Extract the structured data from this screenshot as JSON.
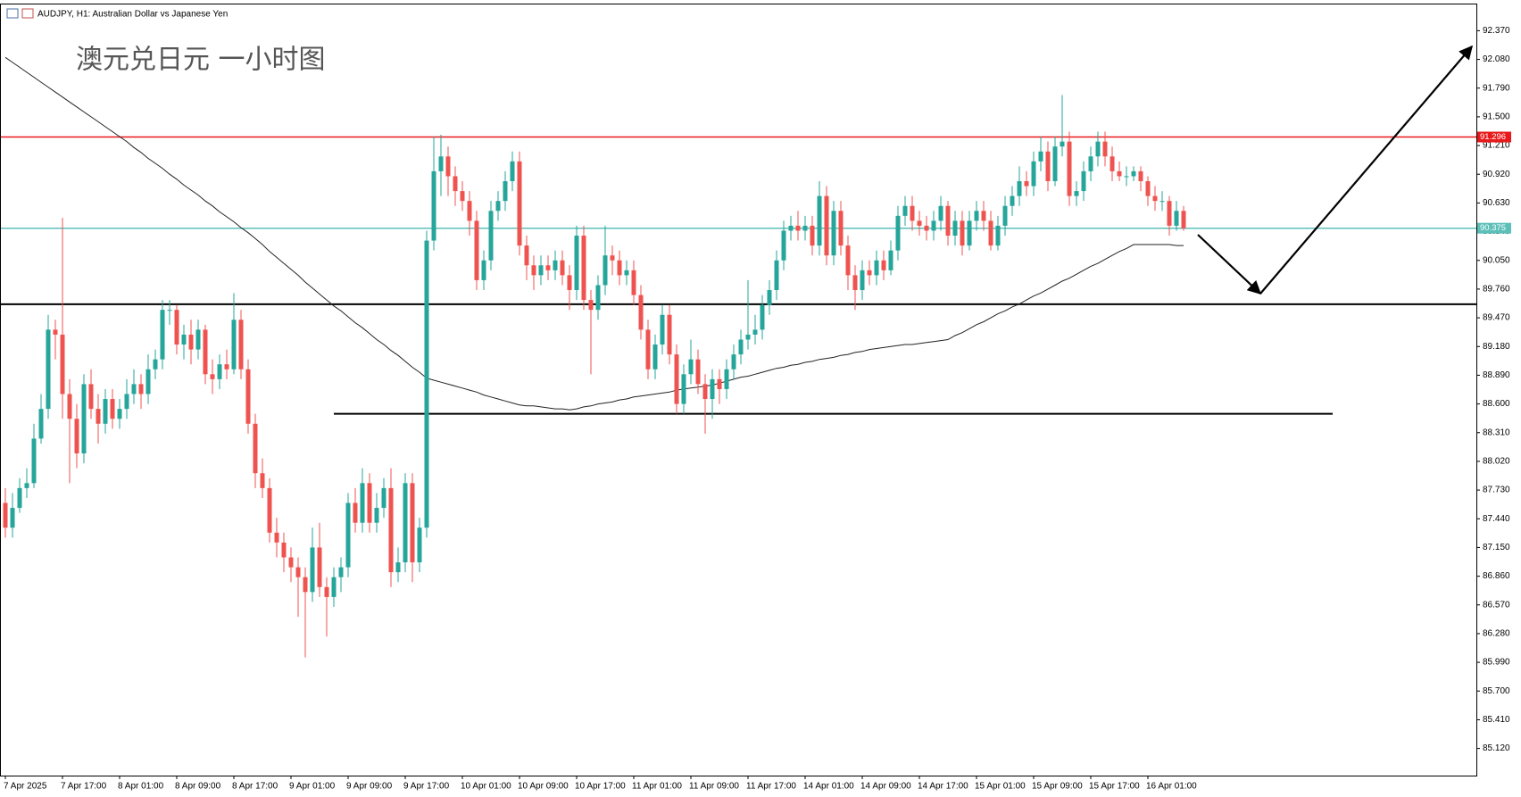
{
  "chart_data": {
    "type": "candlestick",
    "header": "AUDJPY, H1:  Australian Dollar vs Japanese Yen",
    "title": "澳元兑日元 一小时图",
    "up_color": "#26a69a",
    "down_color": "#ef5350",
    "ylim": [
      84.846,
      92.635
    ],
    "yticks": [
      {
        "value": 92.37,
        "label": "92.370"
      },
      {
        "value": 92.08,
        "label": "92.080"
      },
      {
        "value": 91.79,
        "label": "91.790"
      },
      {
        "value": 91.5,
        "label": "91.500"
      },
      {
        "value": 91.21,
        "label": "91.210"
      },
      {
        "value": 90.92,
        "label": "90.920"
      },
      {
        "value": 90.63,
        "label": "90.630"
      },
      {
        "value": 90.34,
        "label": "90.340"
      },
      {
        "value": 90.05,
        "label": "90.050"
      },
      {
        "value": 89.76,
        "label": "89.760"
      },
      {
        "value": 89.47,
        "label": "89.470"
      },
      {
        "value": 89.18,
        "label": "89.180"
      },
      {
        "value": 88.89,
        "label": "88.890"
      },
      {
        "value": 88.6,
        "label": "88.600"
      },
      {
        "value": 88.31,
        "label": "88.310"
      },
      {
        "value": 88.02,
        "label": "88.020"
      },
      {
        "value": 87.73,
        "label": "87.730"
      },
      {
        "value": 87.44,
        "label": "87.440"
      },
      {
        "value": 87.15,
        "label": "87.150"
      },
      {
        "value": 86.86,
        "label": "86.860"
      },
      {
        "value": 86.57,
        "label": "86.570"
      },
      {
        "value": 86.28,
        "label": "86.280"
      },
      {
        "value": 85.99,
        "label": "85.990"
      },
      {
        "value": 85.7,
        "label": "85.700"
      },
      {
        "value": 85.41,
        "label": "85.410"
      },
      {
        "value": 85.12,
        "label": "85.120"
      }
    ],
    "categories": [
      "7 Apr 2025",
      null,
      null,
      null,
      null,
      null,
      null,
      null,
      "7 Apr 17:00",
      null,
      null,
      null,
      null,
      null,
      null,
      null,
      "8 Apr 01:00",
      null,
      null,
      null,
      null,
      null,
      null,
      null,
      "8 Apr 09:00",
      null,
      null,
      null,
      null,
      null,
      null,
      null,
      "8 Apr 17:00",
      null,
      null,
      null,
      null,
      null,
      null,
      null,
      "9 Apr 01:00",
      null,
      null,
      null,
      null,
      null,
      null,
      null,
      "9 Apr 09:00",
      null,
      null,
      null,
      null,
      null,
      null,
      null,
      "9 Apr 17:00",
      null,
      null,
      null,
      null,
      null,
      null,
      null,
      "10 Apr 01:00",
      null,
      null,
      null,
      null,
      null,
      null,
      null,
      "10 Apr 09:00",
      null,
      null,
      null,
      null,
      null,
      null,
      null,
      "10 Apr 17:00",
      null,
      null,
      null,
      null,
      null,
      null,
      null,
      "11 Apr 01:00",
      null,
      null,
      null,
      null,
      null,
      null,
      null,
      "11 Apr 09:00",
      null,
      null,
      null,
      null,
      null,
      null,
      null,
      "11 Apr 17:00",
      null,
      null,
      null,
      null,
      null,
      null,
      null,
      "14 Apr 01:00",
      null,
      null,
      null,
      null,
      null,
      null,
      null,
      "14 Apr 09:00",
      null,
      null,
      null,
      null,
      null,
      null,
      null,
      "14 Apr 17:00",
      null,
      null,
      null,
      null,
      null,
      null,
      null,
      "15 Apr 01:00",
      null,
      null,
      null,
      null,
      null,
      null,
      null,
      "15 Apr 09:00",
      null,
      null,
      null,
      null,
      null,
      null,
      null,
      "15 Apr 17:00",
      null,
      null,
      null,
      null,
      null,
      null,
      null,
      "16 Apr 01:00",
      null,
      null,
      null,
      null,
      null
    ],
    "ohlc": [
      [
        87.6,
        87.75,
        87.25,
        87.35
      ],
      [
        87.35,
        87.7,
        87.25,
        87.55
      ],
      [
        87.55,
        87.85,
        87.5,
        87.75
      ],
      [
        87.75,
        87.95,
        87.65,
        87.8
      ],
      [
        87.8,
        88.4,
        87.75,
        88.25
      ],
      [
        88.25,
        88.7,
        88.2,
        88.55
      ],
      [
        88.55,
        89.5,
        88.45,
        89.35
      ],
      [
        89.35,
        89.45,
        89.05,
        89.3
      ],
      [
        89.3,
        90.48,
        88.45,
        88.7
      ],
      [
        88.7,
        88.85,
        87.8,
        88.45
      ],
      [
        88.45,
        88.6,
        87.95,
        88.1
      ],
      [
        88.1,
        88.9,
        88.0,
        88.8
      ],
      [
        88.8,
        88.95,
        88.45,
        88.55
      ],
      [
        88.55,
        88.7,
        88.2,
        88.4
      ],
      [
        88.4,
        88.75,
        88.3,
        88.65
      ],
      [
        88.65,
        88.75,
        88.35,
        88.45
      ],
      [
        88.45,
        88.65,
        88.35,
        88.55
      ],
      [
        88.55,
        88.85,
        88.45,
        88.7
      ],
      [
        88.7,
        88.95,
        88.6,
        88.8
      ],
      [
        88.8,
        88.9,
        88.55,
        88.7
      ],
      [
        88.7,
        89.1,
        88.6,
        88.95
      ],
      [
        88.95,
        89.15,
        88.85,
        89.05
      ],
      [
        89.05,
        89.65,
        88.95,
        89.55
      ],
      [
        89.55,
        89.65,
        89.4,
        89.55
      ],
      [
        89.55,
        89.6,
        89.1,
        89.2
      ],
      [
        89.2,
        89.4,
        89.05,
        89.3
      ],
      [
        89.3,
        89.45,
        89.0,
        89.15
      ],
      [
        89.15,
        89.45,
        89.05,
        89.35
      ],
      [
        89.35,
        89.4,
        88.8,
        88.9
      ],
      [
        88.9,
        89.05,
        88.7,
        88.85
      ],
      [
        88.85,
        89.1,
        88.75,
        89.0
      ],
      [
        89.0,
        89.15,
        88.85,
        88.95
      ],
      [
        88.95,
        89.72,
        88.9,
        89.45
      ],
      [
        89.45,
        89.55,
        88.85,
        88.95
      ],
      [
        88.95,
        89.05,
        88.3,
        88.4
      ],
      [
        88.4,
        88.5,
        87.75,
        87.9
      ],
      [
        87.9,
        88.05,
        87.65,
        87.75
      ],
      [
        87.75,
        87.85,
        87.2,
        87.3
      ],
      [
        87.3,
        87.45,
        87.05,
        87.2
      ],
      [
        87.2,
        87.3,
        86.9,
        87.05
      ],
      [
        87.05,
        87.15,
        86.8,
        86.95
      ],
      [
        86.95,
        87.05,
        86.45,
        86.85
      ],
      [
        86.85,
        86.95,
        86.04,
        86.7
      ],
      [
        86.7,
        87.35,
        86.6,
        87.15
      ],
      [
        87.15,
        87.4,
        86.65,
        86.75
      ],
      [
        86.75,
        86.85,
        86.25,
        86.65
      ],
      [
        86.65,
        86.95,
        86.55,
        86.85
      ],
      [
        86.85,
        87.05,
        86.7,
        86.95
      ],
      [
        86.95,
        87.7,
        86.85,
        87.6
      ],
      [
        87.6,
        87.75,
        87.3,
        87.4
      ],
      [
        87.4,
        87.95,
        87.3,
        87.8
      ],
      [
        87.8,
        87.9,
        87.3,
        87.4
      ],
      [
        87.4,
        87.7,
        87.3,
        87.55
      ],
      [
        87.55,
        87.85,
        87.45,
        87.75
      ],
      [
        87.75,
        87.95,
        86.75,
        86.9
      ],
      [
        86.9,
        87.15,
        86.8,
        87.0
      ],
      [
        87.0,
        87.9,
        86.9,
        87.8
      ],
      [
        87.8,
        87.9,
        86.8,
        87.0
      ],
      [
        87.0,
        87.45,
        86.9,
        87.35
      ],
      [
        87.35,
        90.35,
        87.25,
        90.25
      ],
      [
        90.25,
        91.3,
        90.15,
        90.95
      ],
      [
        90.95,
        91.32,
        90.7,
        91.1
      ],
      [
        91.1,
        91.2,
        90.7,
        90.9
      ],
      [
        90.9,
        91.0,
        90.6,
        90.75
      ],
      [
        90.75,
        90.85,
        90.55,
        90.65
      ],
      [
        90.65,
        90.75,
        90.3,
        90.45
      ],
      [
        90.45,
        90.55,
        89.75,
        89.85
      ],
      [
        89.85,
        90.15,
        89.75,
        90.05
      ],
      [
        90.05,
        90.65,
        89.95,
        90.55
      ],
      [
        90.55,
        90.75,
        90.45,
        90.65
      ],
      [
        90.65,
        90.95,
        90.55,
        90.85
      ],
      [
        90.85,
        91.15,
        90.75,
        91.05
      ],
      [
        91.05,
        91.15,
        90.1,
        90.2
      ],
      [
        90.2,
        90.3,
        89.85,
        90.0
      ],
      [
        90.0,
        90.1,
        89.75,
        89.9
      ],
      [
        89.9,
        90.1,
        89.8,
        90.0
      ],
      [
        90.0,
        90.1,
        89.85,
        89.95
      ],
      [
        89.95,
        90.15,
        89.85,
        90.05
      ],
      [
        90.05,
        90.15,
        89.8,
        89.9
      ],
      [
        89.9,
        90.0,
        89.55,
        89.75
      ],
      [
        89.75,
        90.4,
        89.65,
        90.3
      ],
      [
        90.3,
        90.4,
        89.55,
        89.65
      ],
      [
        89.65,
        89.75,
        88.9,
        89.55
      ],
      [
        89.55,
        89.9,
        89.45,
        89.8
      ],
      [
        89.8,
        90.4,
        89.7,
        90.1
      ],
      [
        90.1,
        90.2,
        89.9,
        90.05
      ],
      [
        90.05,
        90.15,
        89.8,
        89.9
      ],
      [
        89.9,
        90.05,
        89.8,
        89.95
      ],
      [
        89.95,
        90.05,
        89.6,
        89.7
      ],
      [
        89.7,
        89.8,
        89.25,
        89.35
      ],
      [
        89.35,
        89.45,
        88.85,
        88.95
      ],
      [
        88.95,
        89.3,
        88.85,
        89.2
      ],
      [
        89.2,
        89.6,
        89.1,
        89.5
      ],
      [
        89.5,
        89.6,
        89.0,
        89.1
      ],
      [
        89.1,
        89.2,
        88.5,
        88.6
      ],
      [
        88.6,
        89.0,
        88.5,
        88.9
      ],
      [
        88.9,
        89.25,
        88.8,
        89.05
      ],
      [
        89.05,
        89.15,
        88.7,
        88.8
      ],
      [
        88.8,
        88.9,
        88.3,
        88.65
      ],
      [
        88.65,
        88.95,
        88.45,
        88.85
      ],
      [
        88.85,
        88.95,
        88.6,
        88.75
      ],
      [
        88.75,
        89.05,
        88.65,
        88.95
      ],
      [
        88.95,
        89.2,
        88.85,
        89.1
      ],
      [
        89.1,
        89.35,
        89.0,
        89.25
      ],
      [
        89.25,
        89.85,
        89.15,
        89.3
      ],
      [
        89.3,
        89.5,
        89.2,
        89.35
      ],
      [
        89.35,
        89.7,
        89.25,
        89.6
      ],
      [
        89.6,
        89.85,
        89.5,
        89.75
      ],
      [
        89.75,
        90.15,
        89.65,
        90.05
      ],
      [
        90.05,
        90.45,
        89.95,
        90.35
      ],
      [
        90.35,
        90.5,
        90.25,
        90.4
      ],
      [
        90.4,
        90.55,
        90.25,
        90.35
      ],
      [
        90.35,
        90.5,
        90.25,
        90.4
      ],
      [
        90.4,
        90.5,
        90.1,
        90.2
      ],
      [
        90.2,
        90.85,
        90.1,
        90.7
      ],
      [
        90.7,
        90.8,
        90.0,
        90.1
      ],
      [
        90.1,
        90.65,
        90.0,
        90.55
      ],
      [
        90.55,
        90.65,
        90.1,
        90.2
      ],
      [
        90.2,
        90.3,
        89.75,
        89.9
      ],
      [
        89.9,
        90.0,
        89.55,
        89.75
      ],
      [
        89.75,
        90.05,
        89.65,
        89.95
      ],
      [
        89.95,
        90.05,
        89.8,
        89.9
      ],
      [
        89.9,
        90.15,
        89.8,
        90.05
      ],
      [
        90.05,
        90.15,
        89.85,
        89.95
      ],
      [
        89.95,
        90.25,
        89.9,
        90.15
      ],
      [
        90.15,
        90.6,
        90.05,
        90.5
      ],
      [
        90.5,
        90.7,
        90.4,
        90.6
      ],
      [
        90.6,
        90.7,
        90.35,
        90.45
      ],
      [
        90.45,
        90.55,
        90.3,
        90.4
      ],
      [
        90.4,
        90.5,
        90.25,
        90.35
      ],
      [
        90.35,
        90.55,
        90.25,
        90.45
      ],
      [
        90.45,
        90.7,
        90.35,
        90.6
      ],
      [
        90.6,
        90.65,
        90.2,
        90.3
      ],
      [
        90.3,
        90.55,
        90.2,
        90.45
      ],
      [
        90.45,
        90.55,
        90.1,
        90.2
      ],
      [
        90.2,
        90.55,
        90.15,
        90.45
      ],
      [
        90.45,
        90.65,
        90.35,
        90.55
      ],
      [
        90.55,
        90.65,
        90.35,
        90.45
      ],
      [
        90.45,
        90.55,
        90.15,
        90.2
      ],
      [
        90.2,
        90.5,
        90.15,
        90.4
      ],
      [
        90.4,
        90.7,
        90.3,
        90.6
      ],
      [
        90.6,
        90.8,
        90.5,
        90.7
      ],
      [
        90.7,
        91.0,
        90.6,
        90.85
      ],
      [
        90.85,
        90.95,
        90.7,
        90.8
      ],
      [
        90.8,
        91.15,
        90.7,
        91.05
      ],
      [
        91.05,
        91.3,
        90.95,
        91.15
      ],
      [
        91.15,
        91.25,
        90.75,
        90.85
      ],
      [
        90.85,
        91.3,
        90.8,
        91.2
      ],
      [
        91.2,
        91.72,
        91.1,
        91.25
      ],
      [
        91.25,
        91.35,
        90.6,
        90.7
      ],
      [
        90.7,
        90.85,
        90.6,
        90.75
      ],
      [
        90.75,
        91.05,
        90.65,
        90.95
      ],
      [
        90.95,
        91.2,
        90.85,
        91.1
      ],
      [
        91.1,
        91.35,
        91.0,
        91.25
      ],
      [
        91.25,
        91.35,
        91.0,
        91.1
      ],
      [
        91.1,
        91.2,
        90.85,
        90.95
      ],
      [
        90.95,
        91.05,
        90.85,
        90.9
      ],
      [
        90.9,
        91.0,
        90.8,
        90.9
      ],
      [
        90.9,
        91.0,
        90.85,
        90.95
      ],
      [
        90.95,
        91.0,
        90.75,
        90.85
      ],
      [
        90.85,
        90.9,
        90.6,
        90.7
      ],
      [
        90.7,
        90.8,
        90.55,
        90.65
      ],
      [
        90.65,
        90.75,
        90.55,
        90.65
      ],
      [
        90.65,
        90.7,
        90.3,
        90.4
      ],
      [
        90.4,
        90.65,
        90.35,
        90.55
      ],
      [
        90.55,
        90.6,
        90.35,
        90.375
      ]
    ],
    "ma": {
      "color": "#222222",
      "values": [
        92.1,
        92.05,
        92.0,
        91.95,
        91.9,
        91.85,
        91.8,
        91.75,
        91.7,
        91.65,
        91.6,
        91.55,
        91.5,
        91.45,
        91.4,
        91.35,
        91.3,
        91.25,
        91.19,
        91.14,
        91.08,
        91.03,
        90.98,
        90.92,
        90.87,
        90.81,
        90.76,
        90.71,
        90.65,
        90.6,
        90.54,
        90.49,
        90.44,
        90.38,
        90.33,
        90.27,
        90.21,
        90.14,
        90.08,
        90.02,
        89.96,
        89.9,
        89.83,
        89.77,
        89.71,
        89.65,
        89.59,
        89.54,
        89.48,
        89.42,
        89.37,
        89.31,
        89.25,
        89.2,
        89.14,
        89.09,
        89.03,
        88.97,
        88.92,
        88.86,
        88.84,
        88.82,
        88.8,
        88.78,
        88.76,
        88.74,
        88.72,
        88.69,
        88.67,
        88.65,
        88.63,
        88.61,
        88.59,
        88.58,
        88.58,
        88.57,
        88.56,
        88.55,
        88.55,
        88.54,
        88.55,
        88.57,
        88.58,
        88.6,
        88.61,
        88.62,
        88.64,
        88.65,
        88.67,
        88.68,
        88.69,
        88.7,
        88.71,
        88.72,
        88.74,
        88.75,
        88.76,
        88.77,
        88.78,
        88.79,
        88.81,
        88.83,
        88.85,
        88.87,
        88.88,
        88.9,
        88.92,
        88.94,
        88.96,
        88.97,
        88.99,
        89.0,
        89.02,
        89.03,
        89.05,
        89.06,
        89.07,
        89.09,
        89.1,
        89.12,
        89.13,
        89.15,
        89.16,
        89.17,
        89.18,
        89.19,
        89.2,
        89.2,
        89.21,
        89.22,
        89.23,
        89.24,
        89.25,
        89.29,
        89.32,
        89.36,
        89.4,
        89.43,
        89.47,
        89.51,
        89.54,
        89.58,
        89.61,
        89.65,
        89.69,
        89.72,
        89.76,
        89.8,
        89.84,
        89.87,
        89.91,
        89.95,
        89.99,
        90.02,
        90.06,
        90.1,
        90.14,
        90.17,
        90.21,
        90.21,
        90.21,
        90.21,
        90.21,
        90.21,
        90.2,
        90.2
      ]
    },
    "levels": [
      {
        "value": 91.296,
        "color": "#e8191b",
        "tag": true
      },
      {
        "value": 90.375,
        "color": "#5cbfb8",
        "tag": true
      },
      {
        "value": 89.607,
        "color": "#000000",
        "tag": false
      },
      {
        "value": 88.5,
        "color": "#000000",
        "tag": false,
        "segment": true
      }
    ]
  }
}
